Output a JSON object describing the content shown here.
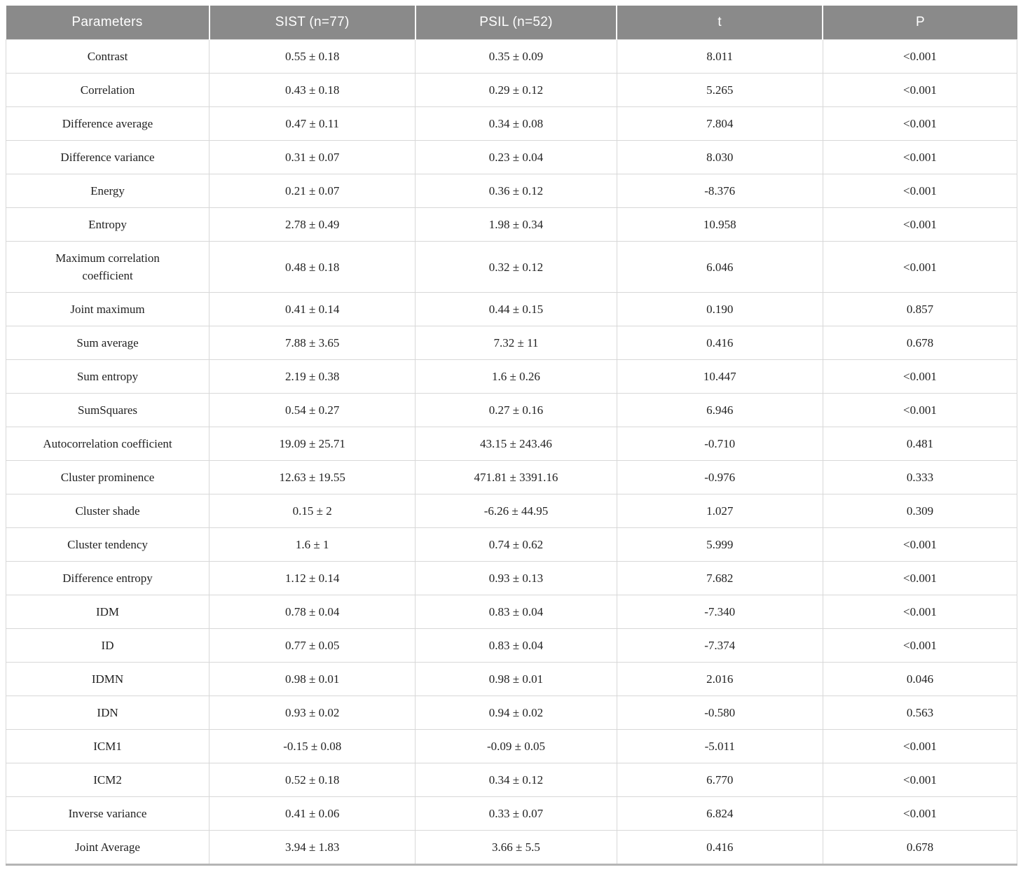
{
  "table": {
    "columns": [
      {
        "label": "Parameters"
      },
      {
        "label": "SIST (n=77)"
      },
      {
        "label": "PSIL (n=52)"
      },
      {
        "label": "t"
      },
      {
        "label": "P"
      }
    ],
    "rows": [
      {
        "parameter": "Contrast",
        "sist": "0.55 ± 0.18",
        "psil": "0.35 ± 0.09",
        "t": "8.011",
        "p": "<0.001"
      },
      {
        "parameter": "Correlation",
        "sist": "0.43 ± 0.18",
        "psil": "0.29 ± 0.12",
        "t": "5.265",
        "p": "<0.001"
      },
      {
        "parameter": "Difference average",
        "sist": "0.47 ± 0.11",
        "psil": "0.34 ± 0.08",
        "t": "7.804",
        "p": "<0.001"
      },
      {
        "parameter": "Difference variance",
        "sist": "0.31 ± 0.07",
        "psil": "0.23 ± 0.04",
        "t": "8.030",
        "p": "<0.001"
      },
      {
        "parameter": "Energy",
        "sist": "0.21 ± 0.07",
        "psil": "0.36 ± 0.12",
        "t": "-8.376",
        "p": "<0.001"
      },
      {
        "parameter": "Entropy",
        "sist": "2.78 ± 0.49",
        "psil": "1.98 ± 0.34",
        "t": "10.958",
        "p": "<0.001"
      },
      {
        "parameter": "Maximum correlation coefficient",
        "sist": "0.48 ± 0.18",
        "psil": "0.32 ± 0.12",
        "t": "6.046",
        "p": "<0.001"
      },
      {
        "parameter": "Joint maximum",
        "sist": "0.41 ± 0.14",
        "psil": "0.44 ± 0.15",
        "t": "0.190",
        "p": "0.857"
      },
      {
        "parameter": "Sum average",
        "sist": "7.88 ± 3.65",
        "psil": "7.32 ± 11",
        "t": "0.416",
        "p": "0.678"
      },
      {
        "parameter": "Sum entropy",
        "sist": "2.19 ± 0.38",
        "psil": "1.6 ± 0.26",
        "t": "10.447",
        "p": "<0.001"
      },
      {
        "parameter": "SumSquares",
        "sist": "0.54 ± 0.27",
        "psil": "0.27 ± 0.16",
        "t": "6.946",
        "p": "<0.001"
      },
      {
        "parameter": "Autocorrelation coefficient",
        "sist": "19.09 ± 25.71",
        "psil": "43.15 ± 243.46",
        "t": "-0.710",
        "p": "0.481"
      },
      {
        "parameter": "Cluster prominence",
        "sist": "12.63 ± 19.55",
        "psil": "471.81 ± 3391.16",
        "t": "-0.976",
        "p": "0.333"
      },
      {
        "parameter": "Cluster shade",
        "sist": "0.15 ± 2",
        "psil": "-6.26 ± 44.95",
        "t": "1.027",
        "p": "0.309"
      },
      {
        "parameter": "Cluster tendency",
        "sist": "1.6 ± 1",
        "psil": "0.74 ± 0.62",
        "t": "5.999",
        "p": "<0.001"
      },
      {
        "parameter": "Difference entropy",
        "sist": "1.12 ± 0.14",
        "psil": "0.93 ± 0.13",
        "t": "7.682",
        "p": "<0.001"
      },
      {
        "parameter": "IDM",
        "sist": "0.78 ± 0.04",
        "psil": "0.83 ± 0.04",
        "t": "-7.340",
        "p": "<0.001"
      },
      {
        "parameter": "ID",
        "sist": "0.77 ± 0.05",
        "psil": "0.83 ± 0.04",
        "t": "-7.374",
        "p": "<0.001"
      },
      {
        "parameter": "IDMN",
        "sist": "0.98 ± 0.01",
        "psil": "0.98 ± 0.01",
        "t": "2.016",
        "p": "0.046"
      },
      {
        "parameter": "IDN",
        "sist": "0.93 ± 0.02",
        "psil": "0.94 ± 0.02",
        "t": "-0.580",
        "p": "0.563"
      },
      {
        "parameter": "ICM1",
        "sist": "-0.15 ± 0.08",
        "psil": "-0.09 ± 0.05",
        "t": "-5.011",
        "p": "<0.001"
      },
      {
        "parameter": "ICM2",
        "sist": "0.52 ± 0.18",
        "psil": "0.34 ± 0.12",
        "t": "6.770",
        "p": "<0.001"
      },
      {
        "parameter": "Inverse variance",
        "sist": "0.41 ± 0.06",
        "psil": "0.33 ± 0.07",
        "t": "6.824",
        "p": "<0.001"
      },
      {
        "parameter": "Joint Average",
        "sist": "3.94 ± 1.83",
        "psil": "3.66 ± 5.5",
        "t": "0.416",
        "p": "0.678"
      }
    ]
  },
  "colors": {
    "header_bg": "#8a8a8a",
    "header_text": "#ffffff",
    "row_border": "#d8d8d8",
    "bottom_border": "#b5b5b5",
    "body_text": "#222222"
  }
}
